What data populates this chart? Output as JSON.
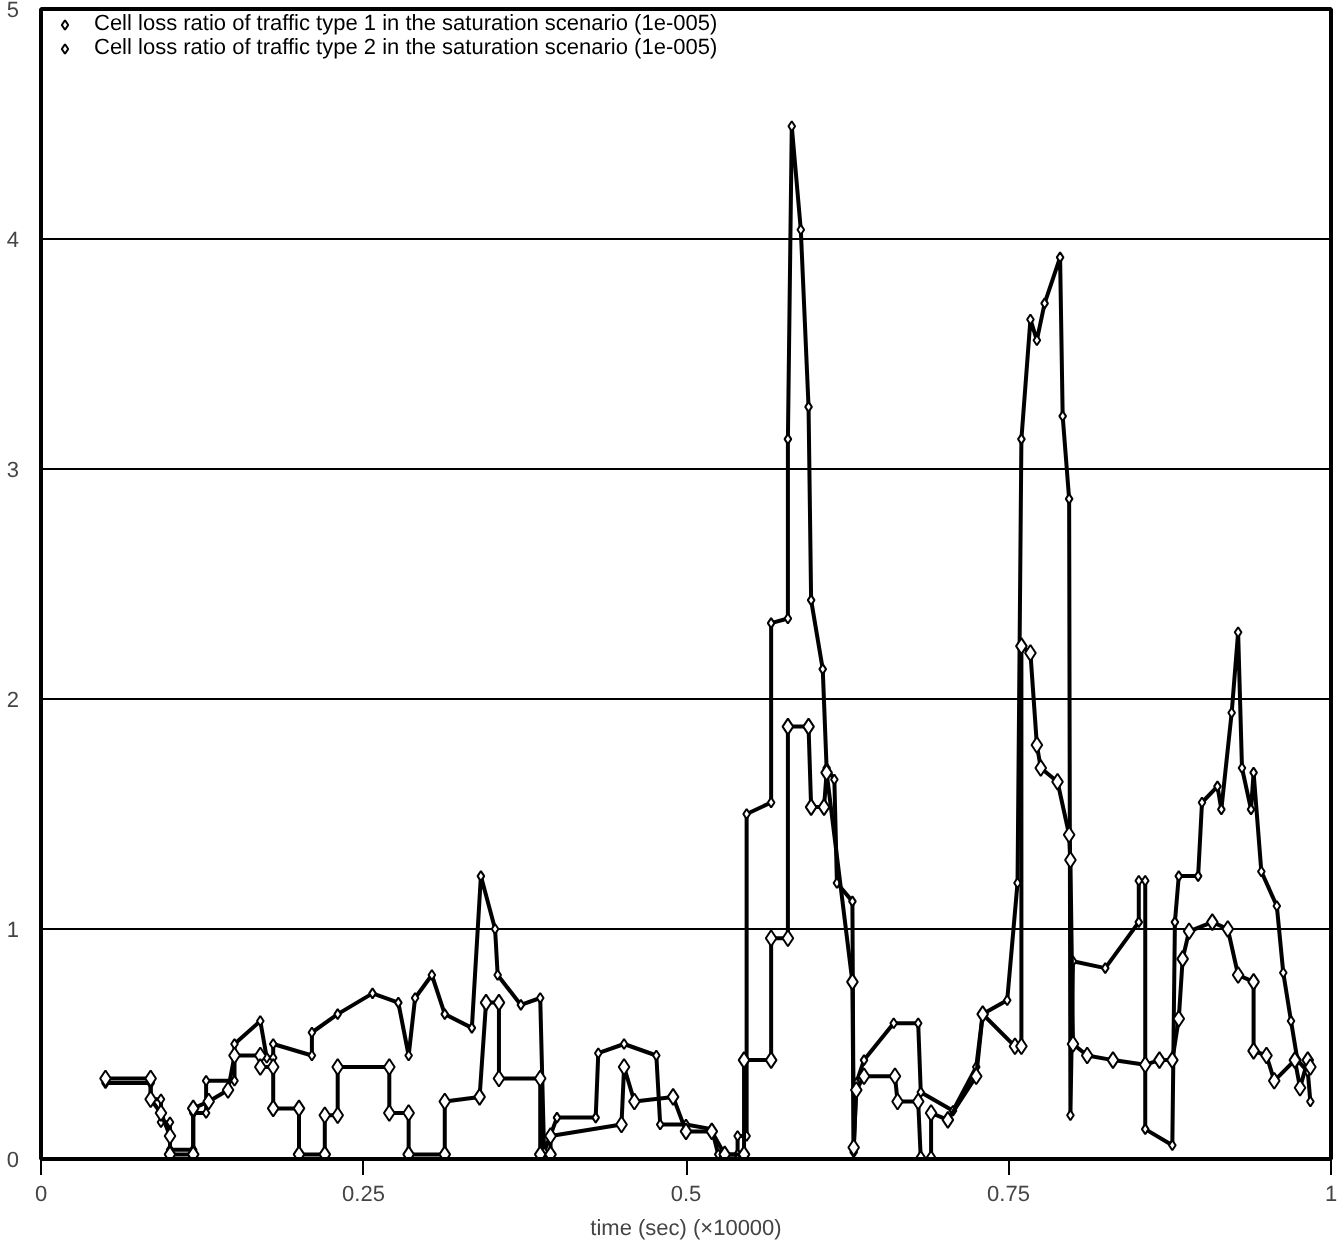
{
  "chart_data": {
    "type": "line",
    "xlabel": "time (sec) (×10000)",
    "xlim": [
      0,
      1
    ],
    "xticks": [
      0,
      0.25,
      0.5,
      0.75,
      1
    ],
    "ylim": [
      0,
      5
    ],
    "yticks": [
      0,
      1,
      2,
      3,
      4,
      5
    ],
    "grid": "y",
    "legend": "top left",
    "marker": "diamond",
    "line_style": "solid",
    "series": [
      {
        "name": "Cell loss ratio of traffic type 1 in the saturation scenario (1e-005)",
        "color": "#000000",
        "x": [
          0.05,
          0.085,
          0.085,
          0.093,
          0.093,
          0.1,
          0.1,
          0.118,
          0.118,
          0.128,
          0.128,
          0.15,
          0.15,
          0.17,
          0.175,
          0.18,
          0.18,
          0.21,
          0.21,
          0.23,
          0.257,
          0.277,
          0.285,
          0.29,
          0.303,
          0.313,
          0.334,
          0.341,
          0.352,
          0.354,
          0.372,
          0.387,
          0.39,
          0.4,
          0.43,
          0.432,
          0.452,
          0.477,
          0.48,
          0.5,
          0.52,
          0.525,
          0.54,
          0.54,
          0.547,
          0.547,
          0.566,
          0.566,
          0.579,
          0.579,
          0.582,
          0.589,
          0.595,
          0.597,
          0.606,
          0.609,
          0.615,
          0.617,
          0.629,
          0.63,
          0.632,
          0.638,
          0.661,
          0.68,
          0.682,
          0.707,
          0.725,
          0.73,
          0.749,
          0.757,
          0.76,
          0.767,
          0.772,
          0.778,
          0.79,
          0.792,
          0.797,
          0.798,
          0.8,
          0.825,
          0.851,
          0.851,
          0.856,
          0.856,
          0.877,
          0.879,
          0.882,
          0.897,
          0.9,
          0.912,
          0.915,
          0.923,
          0.928,
          0.931,
          0.938,
          0.94,
          0.946,
          0.958,
          0.963,
          0.969,
          0.974,
          0.982,
          0.984
        ],
        "values": [
          0.33,
          0.33,
          0.26,
          0.26,
          0.16,
          0.16,
          0.04,
          0.04,
          0.2,
          0.2,
          0.34,
          0.34,
          0.5,
          0.6,
          0.44,
          0.44,
          0.5,
          0.45,
          0.55,
          0.63,
          0.72,
          0.68,
          0.45,
          0.7,
          0.8,
          0.63,
          0.57,
          1.23,
          1.0,
          0.8,
          0.67,
          0.7,
          0.03,
          0.18,
          0.18,
          0.46,
          0.5,
          0.45,
          0.15,
          0.15,
          0.13,
          0.02,
          0.02,
          0.1,
          0.1,
          1.5,
          1.55,
          2.33,
          2.35,
          3.13,
          4.49,
          4.04,
          3.27,
          2.43,
          2.13,
          1.7,
          1.65,
          1.2,
          1.12,
          0.03,
          0.33,
          0.43,
          0.59,
          0.59,
          0.29,
          0.21,
          0.4,
          0.63,
          0.69,
          1.2,
          3.13,
          3.65,
          3.56,
          3.72,
          3.92,
          3.23,
          2.87,
          0.19,
          0.86,
          0.83,
          1.03,
          1.21,
          1.21,
          0.13,
          0.06,
          1.03,
          1.23,
          1.23,
          1.55,
          1.62,
          1.52,
          1.94,
          2.29,
          1.7,
          1.52,
          1.68,
          1.25,
          1.1,
          0.81,
          0.6,
          0.43,
          0.38,
          0.25
        ]
      },
      {
        "name": "Cell loss ratio of traffic type 2 in the saturation scenario (1e-005)",
        "color": "#000000",
        "x": [
          0.05,
          0.085,
          0.085,
          0.093,
          0.1,
          0.1,
          0.118,
          0.118,
          0.13,
          0.145,
          0.15,
          0.17,
          0.17,
          0.18,
          0.18,
          0.2,
          0.2,
          0.22,
          0.22,
          0.23,
          0.23,
          0.27,
          0.27,
          0.285,
          0.285,
          0.313,
          0.313,
          0.34,
          0.345,
          0.355,
          0.355,
          0.387,
          0.387,
          0.395,
          0.395,
          0.45,
          0.452,
          0.46,
          0.49,
          0.5,
          0.52,
          0.53,
          0.545,
          0.545,
          0.566,
          0.566,
          0.579,
          0.579,
          0.595,
          0.597,
          0.607,
          0.609,
          0.629,
          0.63,
          0.632,
          0.638,
          0.662,
          0.664,
          0.68,
          0.682,
          0.69,
          0.69,
          0.703,
          0.725,
          0.73,
          0.755,
          0.76,
          0.76,
          0.767,
          0.772,
          0.775,
          0.788,
          0.797,
          0.798,
          0.8,
          0.811,
          0.831,
          0.856,
          0.867,
          0.877,
          0.882,
          0.885,
          0.89,
          0.908,
          0.92,
          0.928,
          0.94,
          0.94,
          0.95,
          0.956,
          0.972,
          0.976,
          0.982,
          0.984
        ],
        "values": [
          0.35,
          0.35,
          0.26,
          0.2,
          0.1,
          0.02,
          0.02,
          0.22,
          0.25,
          0.3,
          0.45,
          0.45,
          0.4,
          0.4,
          0.22,
          0.22,
          0.02,
          0.02,
          0.19,
          0.19,
          0.4,
          0.4,
          0.2,
          0.2,
          0.02,
          0.02,
          0.25,
          0.27,
          0.68,
          0.68,
          0.35,
          0.35,
          0.02,
          0.02,
          0.1,
          0.15,
          0.4,
          0.25,
          0.27,
          0.12,
          0.12,
          0.02,
          0.02,
          0.43,
          0.43,
          0.96,
          0.96,
          1.88,
          1.88,
          1.53,
          1.53,
          1.68,
          0.77,
          0.05,
          0.3,
          0.36,
          0.36,
          0.25,
          0.25,
          0.0,
          0.0,
          0.2,
          0.17,
          0.36,
          0.63,
          0.49,
          0.49,
          2.23,
          2.2,
          1.8,
          1.7,
          1.64,
          1.41,
          1.3,
          0.5,
          0.45,
          0.43,
          0.41,
          0.43,
          0.43,
          0.61,
          0.87,
          0.99,
          1.03,
          1.0,
          0.8,
          0.77,
          0.47,
          0.45,
          0.34,
          0.43,
          0.31,
          0.43,
          0.4
        ]
      }
    ]
  }
}
